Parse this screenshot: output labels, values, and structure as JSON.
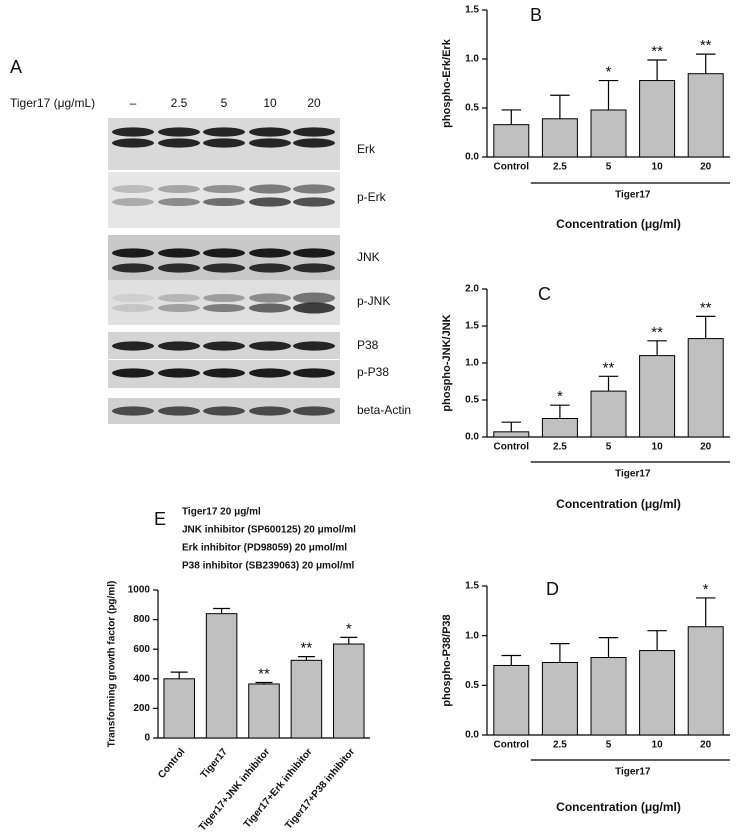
{
  "blot": {
    "panel": "A",
    "dose_label": "Tiger17 (μg/mL)",
    "lanes": [
      "–",
      "2.5",
      "5",
      "10",
      "20"
    ],
    "bands": [
      "Erk",
      "p-Erk",
      "JNK",
      "p-JNK",
      "P38",
      "p-P38",
      "beta-Actin"
    ]
  },
  "chart_data": [
    {
      "type": "bar",
      "panel": "B",
      "ylabel": "phospho-Erk/Erk",
      "categories": [
        "Control",
        "2.5",
        "5",
        "10",
        "20"
      ],
      "values": [
        0.33,
        0.39,
        0.48,
        0.78,
        0.85
      ],
      "errors": [
        0.15,
        0.24,
        0.3,
        0.21,
        0.2
      ],
      "significance": [
        null,
        null,
        "*",
        "**",
        "**"
      ],
      "group_label": "Tiger17",
      "xlabel": "Concentration (μg/ml)",
      "ylim": [
        0,
        1.5
      ],
      "yticks": [
        {
          "value": 0,
          "label": "0.0"
        },
        0.5,
        {
          "value": 1,
          "label": "1.0"
        },
        1.5
      ],
      "color": "#c0c0c0"
    },
    {
      "type": "bar",
      "panel": "C",
      "ylabel": "phospho-JNK/JNK",
      "categories": [
        "Control",
        "2.5",
        "5",
        "10",
        "20"
      ],
      "values": [
        0.07,
        0.25,
        0.62,
        1.1,
        1.33
      ],
      "errors": [
        0.13,
        0.18,
        0.2,
        0.2,
        0.3
      ],
      "significance": [
        null,
        "*",
        "**",
        "**",
        "**"
      ],
      "group_label": "Tiger17",
      "xlabel": "Concentration (μg/ml)",
      "ylim": [
        0,
        2
      ],
      "yticks": [
        {
          "value": 0,
          "label": "0.0"
        },
        0.5,
        {
          "value": 1,
          "label": "1.0"
        },
        1.5,
        {
          "value": 2,
          "label": "2.0"
        }
      ],
      "color": "#c0c0c0"
    },
    {
      "type": "bar",
      "panel": "D",
      "ylabel": "phospho-P38/P38",
      "categories": [
        "Control",
        "2.5",
        "5",
        "10",
        "20"
      ],
      "values": [
        0.7,
        0.73,
        0.78,
        0.85,
        1.09
      ],
      "errors": [
        0.1,
        0.19,
        0.2,
        0.2,
        0.29
      ],
      "significance": [
        null,
        null,
        null,
        null,
        "*"
      ],
      "group_label": "Tiger17",
      "xlabel": "Concentration (μg/ml)",
      "ylim": [
        0,
        1.5
      ],
      "yticks": [
        {
          "value": 0,
          "label": "0.0"
        },
        0.5,
        {
          "value": 1,
          "label": "1.0"
        },
        1.5
      ],
      "color": "#c0c0c0"
    },
    {
      "type": "bar",
      "panel": "E",
      "ylabel": "Transforming growth factor (pg/ml)",
      "categories": [
        "Control",
        "Tiger17",
        "Tiger17+JNK inhibitor",
        "Tiger17+Erk inhibitor",
        "Tiger17+P38 inhibitor"
      ],
      "values": [
        400,
        840,
        365,
        525,
        635
      ],
      "errors": [
        45,
        35,
        10,
        25,
        45
      ],
      "significance": [
        null,
        null,
        "**",
        "**",
        "*"
      ],
      "annotations": [
        "Tiger17 20 μg/ml",
        "JNK inhibitor (SP600125) 20 μmol/ml",
        "Erk inhibitor (PD98059) 20 μmol/ml",
        "P38 inhibitor (SB239063) 20 μmol/ml"
      ],
      "ylim": [
        0,
        1000
      ],
      "yticks": [
        0,
        200,
        400,
        600,
        800,
        1000
      ],
      "color": "#c0c0c0"
    }
  ]
}
